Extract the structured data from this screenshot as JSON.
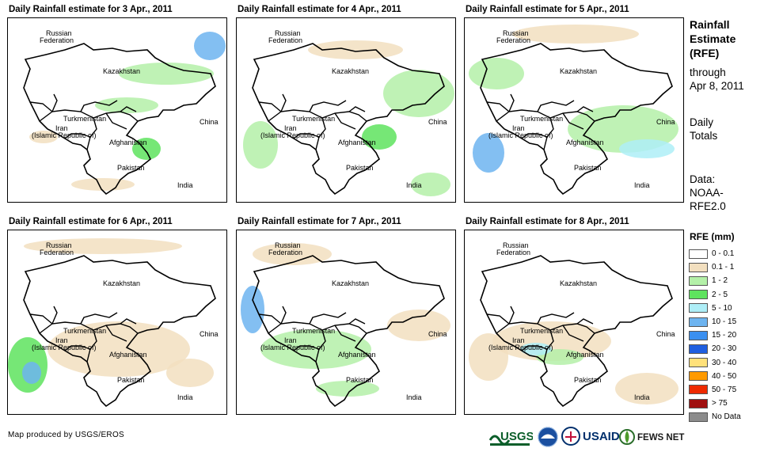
{
  "panels": [
    {
      "title": "Daily Rainfall estimate for 3 Apr., 2011"
    },
    {
      "title": "Daily Rainfall estimate for 4 Apr., 2011"
    },
    {
      "title": "Daily Rainfall estimate for 5 Apr., 2011"
    },
    {
      "title": "Daily Rainfall estimate for 6 Apr., 2011"
    },
    {
      "title": "Daily Rainfall estimate for 7 Apr., 2011"
    },
    {
      "title": "Daily Rainfall estimate for 8 Apr., 2011"
    }
  ],
  "map_labels": {
    "russia_1": "Russian",
    "russia_2": "Federation",
    "kazakhstan": "Kazakhstan",
    "turkmenistan": "Turkmenistan",
    "iran_1": "Iran",
    "iran_2": "(Islamic Republic of)",
    "afghanistan": "Afghanistan",
    "pakistan": "Pakistan",
    "china": "China",
    "india": "India"
  },
  "sidebar": {
    "title_1": "Rainfall",
    "title_2": "Estimate",
    "title_3": "(RFE)",
    "through_1": "through",
    "through_2": "Apr 8, 2011",
    "daily_1": "Daily",
    "daily_2": "Totals",
    "data_1": "Data:",
    "data_2": "NOAA-",
    "data_3": "RFE2.0"
  },
  "legend": {
    "title": "RFE (mm)",
    "items": [
      {
        "label": "0 - 0.1",
        "color": "#ffffff"
      },
      {
        "label": "0.1 - 1",
        "color": "#f2dfbf"
      },
      {
        "label": "1 - 2",
        "color": "#b4f0a8"
      },
      {
        "label": "2 - 5",
        "color": "#5ee35e"
      },
      {
        "label": "5 - 10",
        "color": "#aeeef7"
      },
      {
        "label": "10 - 15",
        "color": "#6db4f0"
      },
      {
        "label": "15 - 20",
        "color": "#3a8ff0"
      },
      {
        "label": "20 - 30",
        "color": "#1f5fe0"
      },
      {
        "label": "30 - 40",
        "color": "#ffe17a"
      },
      {
        "label": "40 - 50",
        "color": "#ff9a00"
      },
      {
        "label": "50 - 75",
        "color": "#ee2a00"
      },
      {
        "label": "> 75",
        "color": "#a01010"
      },
      {
        "label": "No Data",
        "color": "#8c8c8c"
      }
    ]
  },
  "footer": {
    "credit": "Map produced by USGS/EROS",
    "logos": [
      "USGS",
      "NOAA",
      "USAID",
      "FEWS NET"
    ]
  }
}
